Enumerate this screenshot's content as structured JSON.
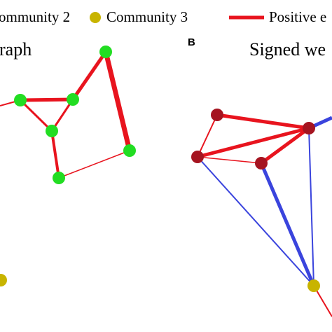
{
  "legend": {
    "community2_label": "ommunity 2",
    "community3_label": "Community 3",
    "positive_edge_label": "Positive e"
  },
  "panel_a": {
    "title": "raph"
  },
  "panel_b": {
    "letter": "B",
    "title": "Signed we"
  },
  "colors": {
    "community_green": "#22dd22",
    "community_olive": "#c8b400",
    "community_darkred": "#a51420",
    "positive_edge": "#e8141e",
    "negative_edge": "#3a44dd",
    "text": "#000000"
  }
}
